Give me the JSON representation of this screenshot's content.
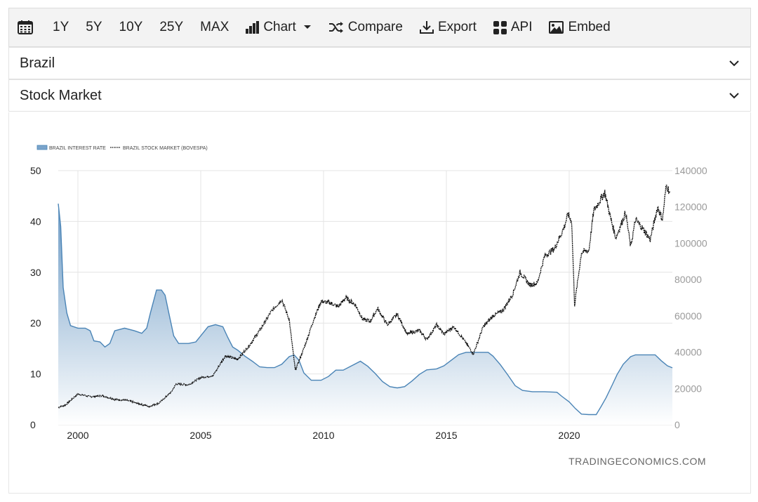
{
  "toolbar": {
    "ranges": [
      "1Y",
      "5Y",
      "10Y",
      "25Y",
      "MAX"
    ],
    "chart_label": "Chart",
    "compare_label": "Compare",
    "export_label": "Export",
    "api_label": "API",
    "embed_label": "Embed"
  },
  "selectors": {
    "country": "Brazil",
    "indicator": "Stock Market"
  },
  "watermark": "TRADINGECONOMICS.COM",
  "colors": {
    "area_stroke": "#4a84b6",
    "area_fill_top": "#6d9bc5",
    "area_fill_bottom": "#ffffff",
    "line": "#111111",
    "grid": "#e4e4e4"
  },
  "chart_data": {
    "type": "area+line",
    "legend_placement": "top-left",
    "grid": true,
    "series": [
      {
        "name": "BRAZIL INTEREST RATE",
        "type": "area",
        "axis": "left",
        "points": [
          [
            1999.2,
            43.5
          ],
          [
            1999.3,
            39
          ],
          [
            1999.4,
            27
          ],
          [
            1999.55,
            22
          ],
          [
            1999.7,
            19.5
          ],
          [
            2000.0,
            19
          ],
          [
            2000.3,
            19
          ],
          [
            2000.5,
            18.5
          ],
          [
            2000.65,
            16.5
          ],
          [
            2000.9,
            16.3
          ],
          [
            2001.1,
            15.3
          ],
          [
            2001.3,
            16
          ],
          [
            2001.5,
            18.5
          ],
          [
            2001.9,
            19
          ],
          [
            2002.3,
            18.5
          ],
          [
            2002.6,
            18
          ],
          [
            2002.8,
            19
          ],
          [
            2002.95,
            22
          ],
          [
            2003.2,
            26.5
          ],
          [
            2003.4,
            26.5
          ],
          [
            2003.55,
            25.5
          ],
          [
            2003.7,
            22
          ],
          [
            2003.9,
            17.5
          ],
          [
            2004.1,
            16
          ],
          [
            2004.5,
            16
          ],
          [
            2004.8,
            16.3
          ],
          [
            2005.0,
            17.5
          ],
          [
            2005.3,
            19.3
          ],
          [
            2005.6,
            19.7
          ],
          [
            2005.9,
            19.3
          ],
          [
            2006.1,
            17.2
          ],
          [
            2006.3,
            15.3
          ],
          [
            2006.5,
            14.7
          ],
          [
            2006.8,
            13.5
          ],
          [
            2007.1,
            12.5
          ],
          [
            2007.4,
            11.4
          ],
          [
            2007.7,
            11.25
          ],
          [
            2008.0,
            11.25
          ],
          [
            2008.3,
            11.9
          ],
          [
            2008.6,
            13.4
          ],
          [
            2008.8,
            13.75
          ],
          [
            2009.0,
            12.7
          ],
          [
            2009.2,
            10.2
          ],
          [
            2009.5,
            8.75
          ],
          [
            2009.9,
            8.75
          ],
          [
            2010.2,
            9.5
          ],
          [
            2010.5,
            10.75
          ],
          [
            2010.8,
            10.75
          ],
          [
            2011.1,
            11.5
          ],
          [
            2011.5,
            12.5
          ],
          [
            2011.8,
            11.5
          ],
          [
            2012.1,
            10.1
          ],
          [
            2012.4,
            8.5
          ],
          [
            2012.7,
            7.5
          ],
          [
            2013.0,
            7.25
          ],
          [
            2013.3,
            7.5
          ],
          [
            2013.6,
            8.6
          ],
          [
            2013.9,
            9.9
          ],
          [
            2014.2,
            10.8
          ],
          [
            2014.6,
            11
          ],
          [
            2014.9,
            11.6
          ],
          [
            2015.2,
            12.7
          ],
          [
            2015.5,
            13.8
          ],
          [
            2015.8,
            14.25
          ],
          [
            2016.3,
            14.25
          ],
          [
            2016.7,
            14.25
          ],
          [
            2016.9,
            13.5
          ],
          [
            2017.2,
            11.8
          ],
          [
            2017.5,
            9.8
          ],
          [
            2017.8,
            7.7
          ],
          [
            2018.1,
            6.75
          ],
          [
            2018.5,
            6.5
          ],
          [
            2019.0,
            6.5
          ],
          [
            2019.5,
            6.4
          ],
          [
            2019.7,
            5.6
          ],
          [
            2020.0,
            4.5
          ],
          [
            2020.25,
            3.2
          ],
          [
            2020.5,
            2.1
          ],
          [
            2020.8,
            2
          ],
          [
            2021.1,
            2
          ],
          [
            2021.3,
            3.6
          ],
          [
            2021.5,
            5.3
          ],
          [
            2021.75,
            7.8
          ],
          [
            2021.95,
            9.9
          ],
          [
            2022.2,
            11.9
          ],
          [
            2022.5,
            13.4
          ],
          [
            2022.7,
            13.75
          ],
          [
            2023.0,
            13.75
          ],
          [
            2023.5,
            13.75
          ],
          [
            2023.75,
            12.6
          ],
          [
            2024.0,
            11.6
          ],
          [
            2024.2,
            11.2
          ]
        ]
      },
      {
        "name": "BRAZIL STOCK MARKET (BOVESPA)",
        "type": "line",
        "axis": "right",
        "points": [
          [
            1999.2,
            9500
          ],
          [
            1999.5,
            11000
          ],
          [
            2000.0,
            17000
          ],
          [
            2000.5,
            15500
          ],
          [
            2001.0,
            16000
          ],
          [
            2001.5,
            14000
          ],
          [
            2002.0,
            13500
          ],
          [
            2002.5,
            11500
          ],
          [
            2002.9,
            10000
          ],
          [
            2003.3,
            12000
          ],
          [
            2003.8,
            18000
          ],
          [
            2004.0,
            22500
          ],
          [
            2004.5,
            22000
          ],
          [
            2005.0,
            26000
          ],
          [
            2005.5,
            27000
          ],
          [
            2006.0,
            38000
          ],
          [
            2006.5,
            36000
          ],
          [
            2007.0,
            44000
          ],
          [
            2007.5,
            54000
          ],
          [
            2007.9,
            63000
          ],
          [
            2008.3,
            69000
          ],
          [
            2008.6,
            58000
          ],
          [
            2008.85,
            30000
          ],
          [
            2009.2,
            42000
          ],
          [
            2009.6,
            58000
          ],
          [
            2009.9,
            68000
          ],
          [
            2010.3,
            67000
          ],
          [
            2010.6,
            65000
          ],
          [
            2010.9,
            70000
          ],
          [
            2011.3,
            66000
          ],
          [
            2011.6,
            58000
          ],
          [
            2011.9,
            57000
          ],
          [
            2012.2,
            64000
          ],
          [
            2012.6,
            55000
          ],
          [
            2013.0,
            61000
          ],
          [
            2013.4,
            50000
          ],
          [
            2013.9,
            52000
          ],
          [
            2014.2,
            47000
          ],
          [
            2014.6,
            55000
          ],
          [
            2014.9,
            50000
          ],
          [
            2015.3,
            54000
          ],
          [
            2015.7,
            47000
          ],
          [
            2016.1,
            39000
          ],
          [
            2016.5,
            54000
          ],
          [
            2016.9,
            60000
          ],
          [
            2017.3,
            63000
          ],
          [
            2017.7,
            72000
          ],
          [
            2018.0,
            84000
          ],
          [
            2018.4,
            77000
          ],
          [
            2018.7,
            78000
          ],
          [
            2019.0,
            93000
          ],
          [
            2019.4,
            97000
          ],
          [
            2019.8,
            109000
          ],
          [
            2019.95,
            116000
          ],
          [
            2020.1,
            112000
          ],
          [
            2020.22,
            66000
          ],
          [
            2020.5,
            95000
          ],
          [
            2020.8,
            96000
          ],
          [
            2021.0,
            118000
          ],
          [
            2021.45,
            128000
          ],
          [
            2021.7,
            113000
          ],
          [
            2021.9,
            103000
          ],
          [
            2022.3,
            117000
          ],
          [
            2022.5,
            98000
          ],
          [
            2022.7,
            113000
          ],
          [
            2023.0,
            108000
          ],
          [
            2023.3,
            102000
          ],
          [
            2023.6,
            120000
          ],
          [
            2023.8,
            113000
          ],
          [
            2023.95,
            132000
          ],
          [
            2024.1,
            128000
          ]
        ]
      }
    ],
    "x_ticks": [
      "2000",
      "2005",
      "2010",
      "2015",
      "2020"
    ],
    "y_left_ticks": [
      "0",
      "10",
      "20",
      "30",
      "40",
      "50"
    ],
    "y_right_ticks": [
      "0",
      "20000",
      "40000",
      "60000",
      "80000",
      "100000",
      "120000",
      "140000"
    ],
    "xlim": [
      1999.2,
      2024.2
    ],
    "ylim_left": [
      0,
      50
    ],
    "ylim_right": [
      0,
      140000
    ]
  }
}
